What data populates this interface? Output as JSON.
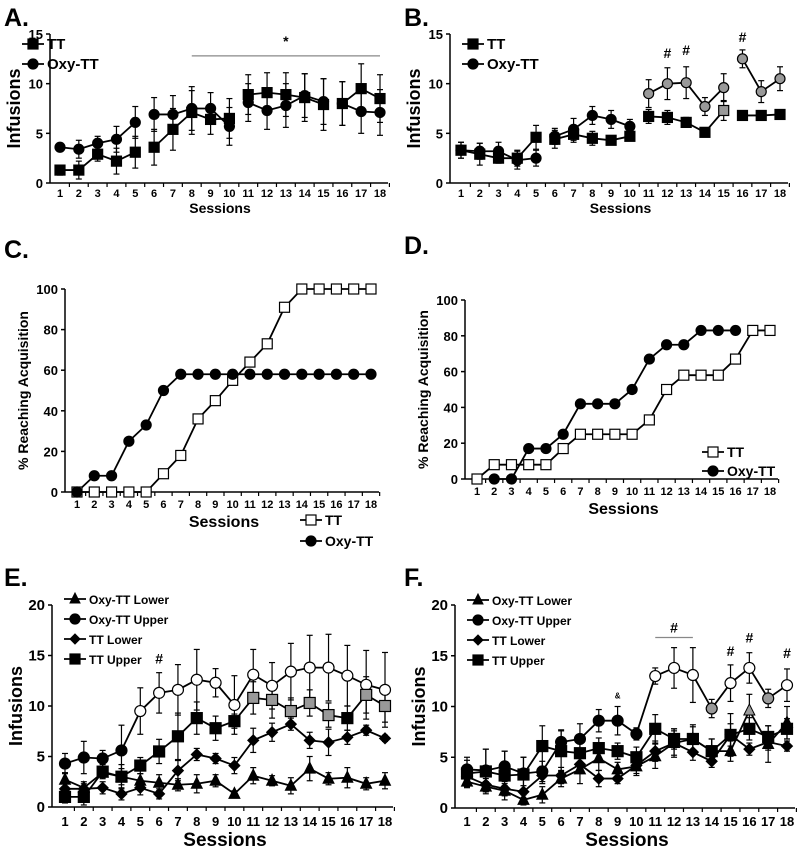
{
  "chart_data": [
    {
      "panel": "A.",
      "type": "line",
      "xlabel": "Sessions",
      "ylabel": "Infusions",
      "ylim": [
        0,
        15
      ],
      "yticks": [
        0,
        5,
        10,
        15
      ],
      "x": [
        1,
        2,
        3,
        4,
        5,
        6,
        7,
        8,
        9,
        10,
        11,
        12,
        13,
        14,
        15,
        16,
        17,
        18
      ],
      "segments": [
        [
          1,
          5
        ],
        [
          6,
          10
        ],
        [
          11,
          15
        ],
        [
          16,
          18
        ]
      ],
      "series": [
        {
          "name": "TT",
          "marker": "square",
          "values": [
            1.3,
            1.3,
            2.9,
            2.2,
            3.1,
            3.6,
            5.4,
            7.1,
            6.4,
            6.5,
            8.9,
            9.1,
            8.9,
            8.6,
            7.9,
            8.0,
            9.5,
            8.5
          ],
          "error": [
            0.5,
            0.9,
            0.7,
            1.3,
            1.6,
            1.8,
            2.1,
            2.2,
            1.5,
            2.0,
            2.0,
            2.0,
            2.2,
            2.4,
            2.6,
            2.2,
            2.5,
            2.4
          ],
          "gray": []
        },
        {
          "name": "Oxy-TT",
          "marker": "circle",
          "values": [
            3.6,
            3.4,
            4.0,
            4.4,
            6.1,
            6.9,
            6.9,
            7.5,
            7.5,
            5.7,
            8.1,
            7.3,
            7.8,
            8.8,
            8.2,
            8.0,
            7.2,
            7.1
          ],
          "error": [
            0.4,
            0.9,
            0.7,
            1.3,
            1.6,
            1.7,
            1.9,
            2.2,
            1.6,
            1.9,
            1.9,
            1.9,
            2.2,
            2.2,
            2.3,
            2.2,
            2.2,
            2.3
          ],
          "gray": []
        }
      ],
      "annotations": [
        {
          "text": "*",
          "x_from": 8,
          "x_to": 18,
          "y": 12.8
        }
      ]
    },
    {
      "panel": "B.",
      "type": "line",
      "xlabel": "Sessions",
      "ylabel": "Infusions",
      "ylim": [
        0,
        15
      ],
      "yticks": [
        0,
        5,
        10,
        15
      ],
      "x": [
        1,
        2,
        3,
        4,
        5,
        6,
        7,
        8,
        9,
        10,
        11,
        12,
        13,
        14,
        15,
        16,
        17,
        18
      ],
      "segments": [
        [
          1,
          5
        ],
        [
          6,
          10
        ],
        [
          11,
          15
        ],
        [
          16,
          18
        ]
      ],
      "series": [
        {
          "name": "TT",
          "marker": "square",
          "values": [
            3.3,
            2.9,
            2.5,
            2.5,
            4.6,
            4.4,
            4.9,
            4.5,
            4.3,
            4.7,
            6.7,
            6.6,
            6.1,
            5.1,
            7.3,
            6.8,
            6.8,
            6.9
          ],
          "error": [
            0.8,
            1.1,
            0.5,
            0.8,
            1.2,
            0.9,
            0.8,
            0.7,
            0.4,
            0.4,
            0.7,
            0.7,
            0.5,
            0.3,
            1.0,
            0.4,
            0.3,
            0.4
          ],
          "gray": [
            15
          ]
        },
        {
          "name": "Oxy-TT",
          "marker": "circle",
          "values": [
            3.3,
            3.2,
            3.2,
            2.3,
            2.5,
            4.7,
            5.4,
            6.8,
            6.4,
            5.7,
            9.0,
            10.0,
            10.1,
            7.7,
            9.6,
            12.5,
            9.2,
            10.5
          ],
          "error": [
            0.8,
            0.8,
            0.9,
            0.9,
            0.8,
            0.8,
            1.1,
            0.9,
            0.9,
            0.7,
            1.4,
            1.6,
            1.6,
            0.9,
            1.4,
            0.9,
            1.1,
            1.2
          ],
          "gray": [
            11,
            12,
            13,
            14,
            15,
            16,
            17,
            18
          ]
        }
      ],
      "annotations": [
        {
          "text": "#",
          "x": 12,
          "y": 12.6
        },
        {
          "text": "#",
          "x": 13,
          "y": 12.9
        },
        {
          "text": "#",
          "x": 16,
          "y": 14.2
        }
      ]
    },
    {
      "panel": "C.",
      "type": "line",
      "xlabel": "Sessions",
      "ylabel": "% Reaching Acquisition",
      "ylim": [
        0,
        100
      ],
      "yticks": [
        0,
        20,
        40,
        60,
        80,
        100
      ],
      "x": [
        1,
        2,
        3,
        4,
        5,
        6,
        7,
        8,
        9,
        10,
        11,
        12,
        13,
        14,
        15,
        16,
        17,
        18
      ],
      "segments": [
        [
          1,
          18
        ]
      ],
      "series": [
        {
          "name": "TT",
          "marker": "open-square",
          "values": [
            0,
            0,
            0,
            0,
            0,
            9,
            18,
            36,
            45,
            55,
            64,
            73,
            91,
            100,
            100,
            100,
            100,
            100
          ]
        },
        {
          "name": "Oxy-TT",
          "marker": "circle",
          "values": [
            0,
            8,
            8,
            25,
            33,
            50,
            58,
            58,
            58,
            58,
            58,
            58,
            58,
            58,
            58,
            58,
            58,
            58
          ]
        }
      ],
      "annotations": []
    },
    {
      "panel": "D.",
      "type": "line",
      "xlabel": "Sessions",
      "ylabel": "% Reaching Acquisition",
      "ylim": [
        0,
        100
      ],
      "yticks": [
        0,
        20,
        40,
        60,
        80,
        100
      ],
      "x": [
        1,
        2,
        3,
        4,
        5,
        6,
        7,
        8,
        9,
        10,
        11,
        12,
        13,
        14,
        15,
        16,
        17,
        18
      ],
      "segments": [
        [
          1,
          18
        ]
      ],
      "series": [
        {
          "name": "TT",
          "marker": "open-square",
          "values": [
            0,
            8,
            8,
            8,
            8,
            17,
            25,
            25,
            25,
            25,
            33,
            50,
            58,
            58,
            58,
            67,
            83,
            83
          ]
        },
        {
          "name": "Oxy-TT",
          "marker": "circle",
          "values": [
            null,
            0,
            0,
            17,
            17,
            25,
            42,
            42,
            42,
            50,
            67,
            75,
            75,
            83,
            83,
            83,
            null,
            null
          ]
        }
      ],
      "annotations": []
    },
    {
      "panel": "E.",
      "type": "line",
      "xlabel": "Sessions",
      "ylabel": "Infusions",
      "ylim": [
        0,
        20
      ],
      "yticks": [
        0,
        5,
        10,
        15,
        20
      ],
      "x": [
        1,
        2,
        3,
        4,
        5,
        6,
        7,
        8,
        9,
        10,
        11,
        12,
        13,
        14,
        15,
        16,
        17,
        18
      ],
      "segments": [
        [
          1,
          18
        ]
      ],
      "series": [
        {
          "name": "Oxy-TT Lower",
          "marker": "triangle",
          "values": [
            2.7,
            1.9,
            3.4,
            3.0,
            2.6,
            2.4,
            2.2,
            2.3,
            2.6,
            1.3,
            3.1,
            2.6,
            2.1,
            3.8,
            2.8,
            2.9,
            2.3,
            2.6
          ],
          "error": [
            0.7,
            0.6,
            0.5,
            0.8,
            0.7,
            0.8,
            0.6,
            0.9,
            0.6,
            0.3,
            0.8,
            0.5,
            0.8,
            1.2,
            0.6,
            1.0,
            0.6,
            0.8
          ],
          "gray": [],
          "open": []
        },
        {
          "name": "Oxy-TT Upper",
          "marker": "circle",
          "values": [
            4.3,
            4.9,
            4.8,
            5.6,
            9.5,
            11.3,
            11.6,
            12.6,
            12.3,
            10.1,
            13.1,
            12.0,
            13.4,
            13.8,
            13.8,
            13.0,
            12.1,
            11.6
          ],
          "error": [
            1.0,
            1.6,
            0.8,
            2.5,
            2.3,
            2.0,
            2.5,
            3.0,
            1.4,
            2.9,
            2.5,
            2.3,
            2.8,
            3.2,
            3.3,
            3.0,
            3.4,
            3.7
          ],
          "gray": [],
          "open": [
            5,
            6,
            7,
            8,
            9,
            10,
            11,
            12,
            13,
            14,
            15,
            16,
            17,
            18
          ]
        },
        {
          "name": "TT Lower",
          "marker": "diamond",
          "values": [
            1.8,
            1.8,
            1.9,
            1.3,
            1.9,
            1.3,
            3.6,
            5.2,
            4.8,
            4.1,
            6.6,
            7.4,
            8.2,
            6.6,
            6.4,
            6.9,
            7.6,
            6.8
          ],
          "error": [
            0.5,
            0.5,
            0.6,
            0.6,
            0.7,
            0.5,
            1.0,
            0.6,
            0.5,
            0.8,
            1.2,
            0.9,
            0.6,
            0.8,
            1.3,
            0.7,
            0.5,
            0.3
          ],
          "gray": [],
          "open": []
        },
        {
          "name": "TT Upper",
          "marker": "square",
          "values": [
            1.0,
            1.0,
            3.5,
            3.0,
            4.1,
            5.5,
            7.0,
            8.8,
            7.8,
            8.5,
            10.8,
            10.6,
            9.5,
            10.3,
            9.1,
            8.8,
            11.1,
            10.0
          ],
          "error": [
            0.6,
            0.8,
            0.7,
            1.2,
            0.8,
            1.2,
            2.3,
            1.6,
            1.2,
            0.7,
            1.6,
            1.8,
            1.3,
            1.3,
            1.2,
            1.2,
            1.8,
            1.6
          ],
          "gray": [
            11,
            12,
            13,
            14,
            15,
            17,
            18
          ],
          "open": []
        }
      ],
      "annotations": [
        {
          "text": "#",
          "x": 6,
          "y": 14.2
        }
      ]
    },
    {
      "panel": "F.",
      "type": "line",
      "xlabel": "Sessions",
      "ylabel": "Infusions",
      "ylim": [
        0,
        20
      ],
      "yticks": [
        0,
        5,
        10,
        15,
        20
      ],
      "x": [
        1,
        2,
        3,
        4,
        5,
        6,
        7,
        8,
        9,
        10,
        11,
        12,
        13,
        14,
        15,
        16,
        17,
        18
      ],
      "segments": [
        [
          1,
          18
        ]
      ],
      "series": [
        {
          "name": "Oxy-TT Lower",
          "marker": "triangle",
          "values": [
            2.6,
            2.1,
            1.7,
            0.8,
            1.3,
            2.9,
            3.8,
            4.9,
            3.8,
            4.1,
            5.1,
            6.4,
            6.8,
            5.6,
            5.6,
            9.6,
            6.3,
            8.4
          ],
          "error": [
            0.6,
            0.5,
            0.5,
            0.5,
            0.8,
            0.8,
            1.4,
            1.2,
            0.7,
            0.9,
            1.2,
            1.4,
            1.2,
            1.2,
            1.0,
            1.6,
            1.8,
            1.6
          ],
          "gray": [
            16
          ],
          "open": []
        },
        {
          "name": "Oxy-TT Upper",
          "marker": "circle",
          "values": [
            3.8,
            3.7,
            4.1,
            3.4,
            3.6,
            6.5,
            6.8,
            8.6,
            8.6,
            7.3,
            13.0,
            13.8,
            13.1,
            9.8,
            12.3,
            13.8,
            10.8,
            12.1
          ],
          "error": [
            1.2,
            2.1,
            1.5,
            1.6,
            1.0,
            1.2,
            1.5,
            1.1,
            1.4,
            0.6,
            0.8,
            2.0,
            2.7,
            0.9,
            1.8,
            1.5,
            0.9,
            1.6
          ],
          "gray": [
            14,
            17
          ],
          "open": [
            11,
            12,
            13,
            15,
            16,
            18
          ]
        },
        {
          "name": "TT Lower",
          "marker": "diamond",
          "values": [
            3.1,
            2.3,
            1.9,
            1.6,
            3.2,
            3.2,
            4.3,
            2.9,
            2.9,
            4.2,
            5.6,
            6.4,
            5.5,
            4.6,
            7.2,
            5.8,
            6.5,
            6.1
          ],
          "error": [
            0.8,
            0.6,
            0.5,
            0.6,
            0.8,
            0.8,
            0.9,
            0.8,
            0.5,
            0.8,
            1.0,
            1.2,
            0.8,
            0.6,
            1.1,
            0.6,
            0.8,
            0.5
          ],
          "gray": [],
          "open": []
        },
        {
          "name": "TT Upper",
          "marker": "square",
          "values": [
            3.4,
            3.6,
            3.2,
            3.3,
            6.1,
            5.6,
            5.4,
            5.9,
            5.6,
            5.0,
            7.8,
            6.8,
            6.8,
            5.6,
            7.2,
            7.8,
            7.0,
            7.8
          ],
          "error": [
            1.3,
            2.2,
            2.4,
            1.7,
            2.0,
            2.0,
            1.5,
            1.0,
            0.8,
            1.0,
            1.4,
            1.0,
            1.4,
            1.2,
            2.1,
            1.1,
            1.1,
            1.0
          ],
          "gray": [],
          "open": []
        }
      ],
      "annotations": [
        {
          "text": "#",
          "x_from": 11,
          "x_to": 13,
          "y": 16.8
        },
        {
          "text": "#",
          "x": 15,
          "y": 15.0
        },
        {
          "text": "#",
          "x": 16,
          "y": 16.3
        },
        {
          "text": "#",
          "x": 18,
          "y": 14.8
        },
        {
          "text": "&",
          "x": 9,
          "y": 10.8
        }
      ]
    }
  ]
}
